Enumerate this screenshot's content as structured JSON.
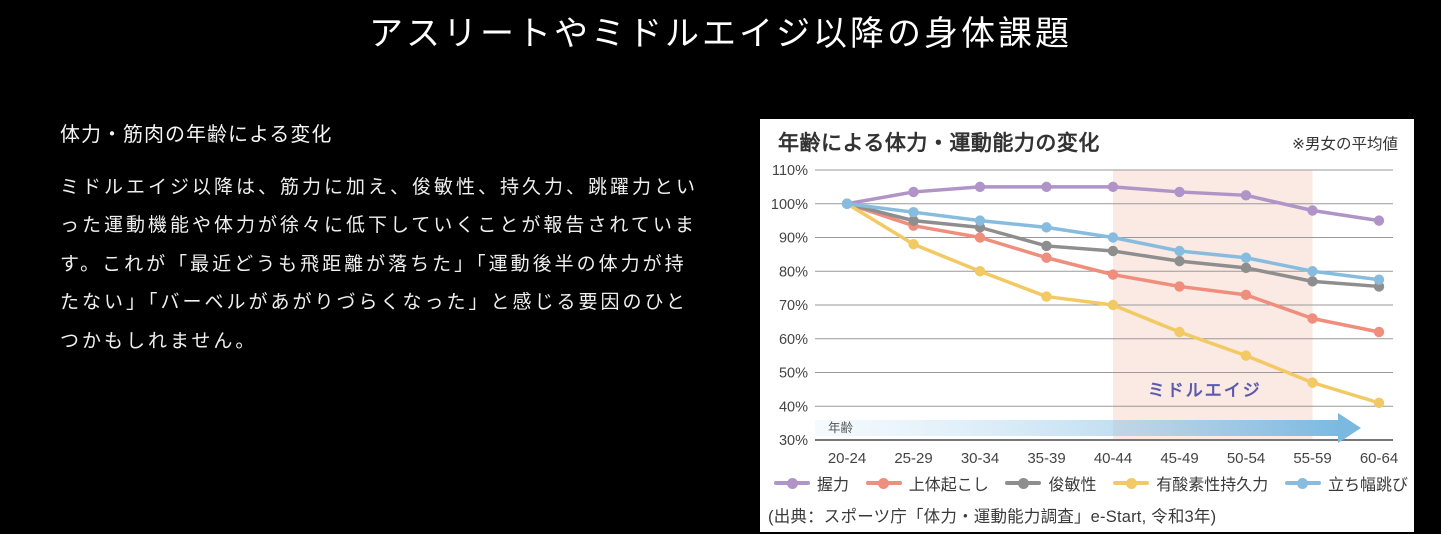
{
  "page": {
    "title": "アスリートやミドルエイジ以降の身体課題",
    "background_color": "#000000"
  },
  "left_section": {
    "heading": "体力・筋肉の年齢による変化",
    "paragraph_lines": [
      "ミドルエイジ以降は、筋力に加え、俊敏性、持久力、跳躍力とい",
      "った運動機能や体力が徐々に低下していくことが報告されていま",
      "す。これが「最近どうも飛距離が落ちた」「運動後半の体力が持",
      "たない」「バーベルがあがりづらくなった」と感じる要因のひと",
      "つかもしれません。"
    ]
  },
  "chart_panel": {
    "title": "年齢による体力・運動能力の変化",
    "note": "※男女の平均値",
    "source": "(出典：スポーツ庁「体力・運動能力調査」e-Start, 令和3年)"
  },
  "chart_data": {
    "type": "line",
    "title": "年齢による体力・運動能力の変化",
    "subtitle": "※男女の平均値",
    "categories": [
      "20-24",
      "25-29",
      "30-34",
      "35-39",
      "40-44",
      "45-49",
      "50-54",
      "55-59",
      "60-64"
    ],
    "unit": "%",
    "ylim": [
      30,
      110
    ],
    "ytick_step": 10,
    "grid": true,
    "legend_position": "bottom",
    "series": [
      {
        "name": "握力",
        "color": "#b094c8",
        "values": [
          100,
          103.5,
          105,
          105,
          105,
          103.5,
          102.5,
          98,
          95
        ]
      },
      {
        "name": "上体起こし",
        "color": "#ef8e7d",
        "values": [
          100,
          93.5,
          90,
          84,
          79,
          75.5,
          73,
          66,
          62
        ]
      },
      {
        "name": "俊敏性",
        "color": "#8e8e8e",
        "values": [
          100,
          95,
          93,
          87.5,
          86,
          83,
          81,
          77,
          75.5
        ]
      },
      {
        "name": "有酸素性持久力",
        "color": "#f3c963",
        "values": [
          100,
          88,
          80,
          72.5,
          70,
          62,
          55,
          47,
          41
        ]
      },
      {
        "name": "立ち幅跳び",
        "color": "#88bcdf",
        "values": [
          100,
          97.5,
          95,
          93,
          90,
          86,
          84,
          80,
          77.5
        ]
      }
    ],
    "highlight_band": {
      "label": "ミドルエイジ",
      "from_category": "40-44",
      "to_category": "55-59",
      "color": "#fbe9e4",
      "label_color": "#5b5ca9"
    },
    "x_axis_arrow": {
      "label": "年齢",
      "color": "#7cb9e1"
    },
    "colors": {
      "gridline": "#9a9a9a",
      "axis_line": "#787878",
      "tick_text": "#444444"
    }
  }
}
